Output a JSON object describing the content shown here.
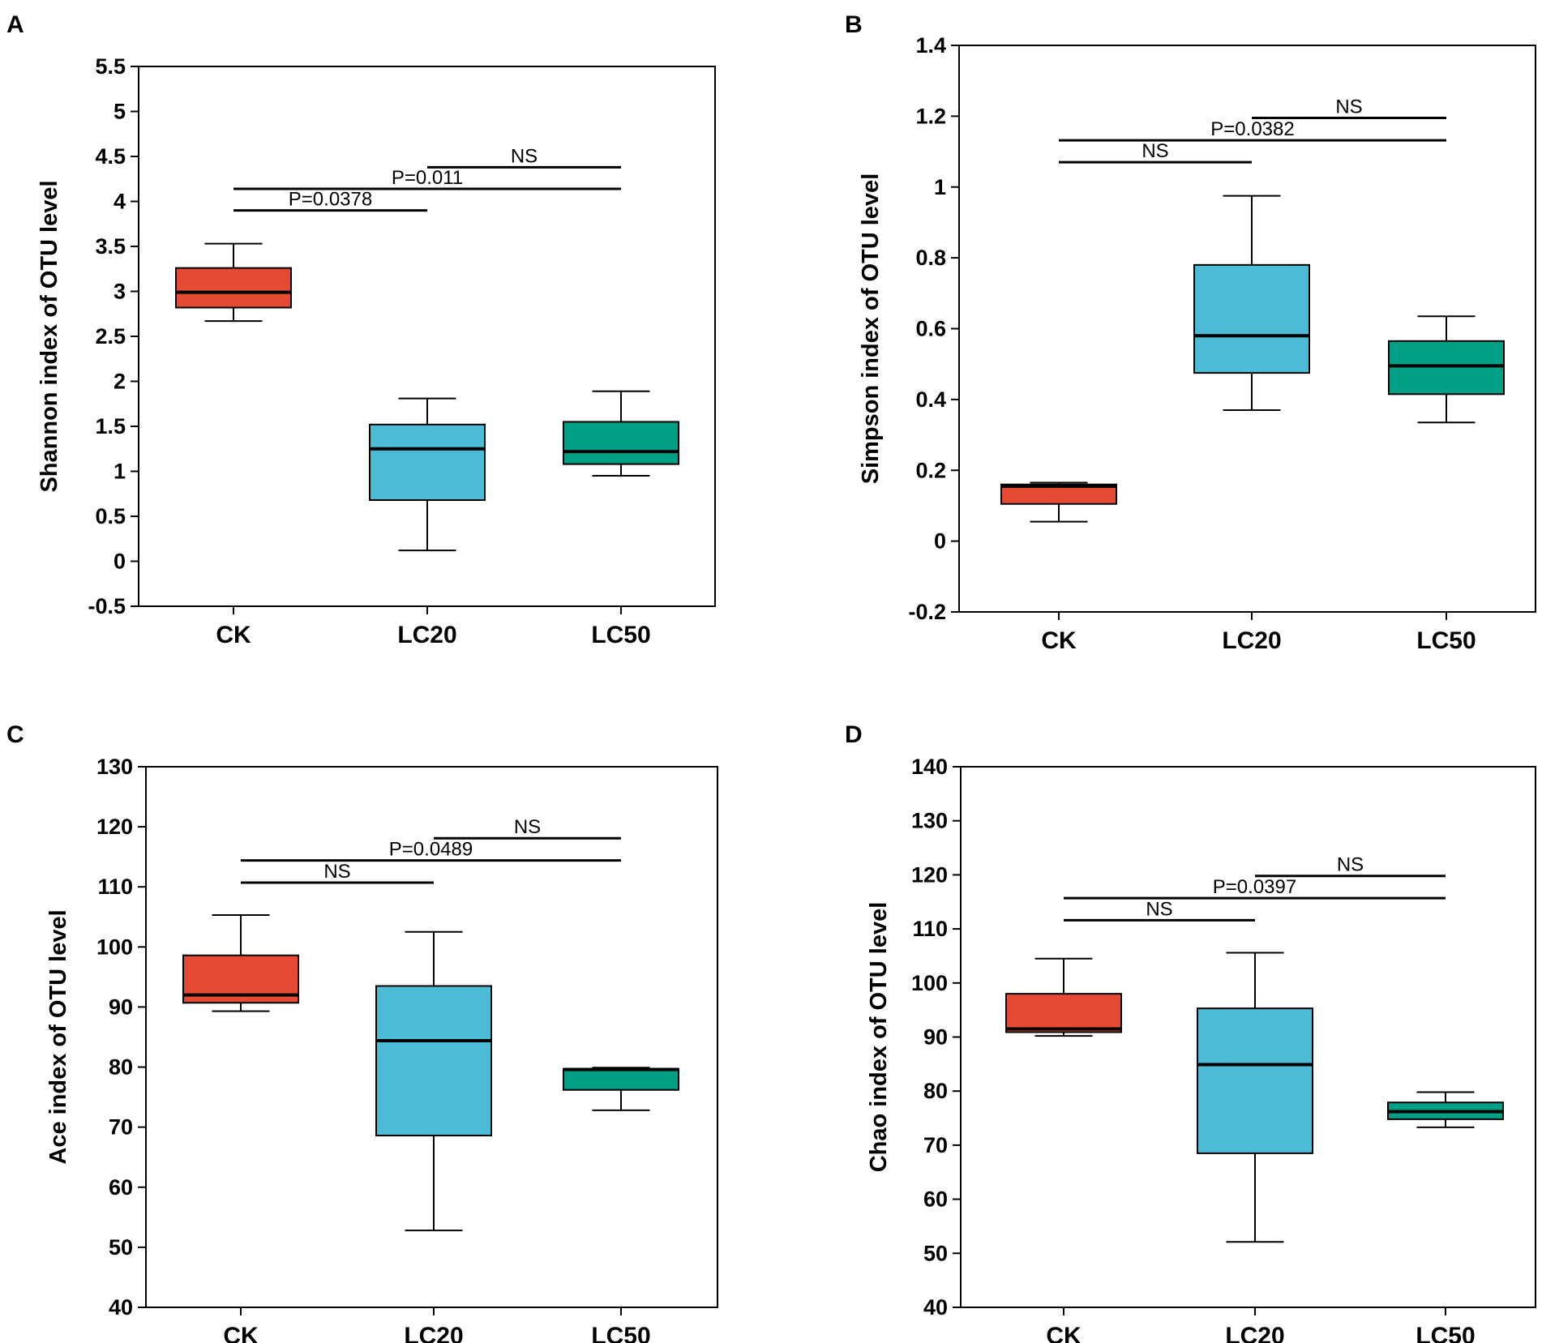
{
  "colors": {
    "CK": "#e54b33",
    "LC20": "#4bbbd6",
    "LC50": "#009f86"
  },
  "chart_data": [
    {
      "type": "box",
      "panel": "A",
      "ylabel": "Shannon index of OTU level",
      "categories": [
        "CK",
        "LC20",
        "LC50"
      ],
      "ylim": [
        -0.5,
        5.5
      ],
      "yticks": [
        -0.5,
        0,
        0.5,
        1,
        1.5,
        2,
        2.5,
        3,
        3.5,
        4,
        4.5,
        5,
        5.5
      ],
      "ytick_labels": [
        "-0.5",
        "0",
        "0.5",
        "1",
        "1.5",
        "2",
        "2.5",
        "3",
        "3.5",
        "4",
        "4.5",
        "5",
        "5.5"
      ],
      "boxes": [
        {
          "category": "CK",
          "min": 2.67,
          "q1": 2.82,
          "median": 2.99,
          "q3": 3.26,
          "max": 3.53
        },
        {
          "category": "LC20",
          "min": 0.12,
          "q1": 0.68,
          "median": 1.25,
          "q3": 1.52,
          "max": 1.81
        },
        {
          "category": "LC50",
          "min": 0.95,
          "q1": 1.08,
          "median": 1.22,
          "q3": 1.55,
          "max": 1.89
        }
      ],
      "comparisons": [
        {
          "from": 0,
          "to": 1,
          "y": 3.9,
          "label": "P=0.0378"
        },
        {
          "from": 0,
          "to": 2,
          "y": 4.14,
          "label": "P=0.011"
        },
        {
          "from": 1,
          "to": 2,
          "y": 4.38,
          "label": "NS"
        }
      ]
    },
    {
      "type": "box",
      "panel": "B",
      "ylabel": "Simpson index of OTU level",
      "categories": [
        "CK",
        "LC20",
        "LC50"
      ],
      "ylim": [
        -0.2,
        1.4
      ],
      "yticks": [
        -0.2,
        0,
        0.2,
        0.4,
        0.6,
        0.8,
        1.0,
        1.2,
        1.4
      ],
      "ytick_labels": [
        "-0.2",
        "0",
        "0.2",
        "0.4",
        "0.6",
        "0.8",
        "1",
        "1.2",
        "1.4"
      ],
      "boxes": [
        {
          "category": "CK",
          "min": 0.055,
          "q1": 0.105,
          "median": 0.155,
          "q3": 0.16,
          "max": 0.165
        },
        {
          "category": "LC20",
          "min": 0.37,
          "q1": 0.475,
          "median": 0.58,
          "q3": 0.78,
          "max": 0.975
        },
        {
          "category": "LC50",
          "min": 0.335,
          "q1": 0.415,
          "median": 0.495,
          "q3": 0.565,
          "max": 0.635
        }
      ],
      "comparisons": [
        {
          "from": 0,
          "to": 1,
          "y": 1.07,
          "label": "NS"
        },
        {
          "from": 0,
          "to": 2,
          "y": 1.132,
          "label": "P=0.0382"
        },
        {
          "from": 1,
          "to": 2,
          "y": 1.195,
          "label": "NS"
        }
      ]
    },
    {
      "type": "box",
      "panel": "C",
      "ylabel": "Ace index of OTU level",
      "categories": [
        "CK",
        "LC20",
        "LC50"
      ],
      "ylim": [
        40,
        130
      ],
      "yticks": [
        40,
        50,
        60,
        70,
        80,
        90,
        100,
        110,
        120,
        130
      ],
      "ytick_labels": [
        "40",
        "50",
        "60",
        "70",
        "80",
        "90",
        "100",
        "110",
        "120",
        "130"
      ],
      "boxes": [
        {
          "category": "CK",
          "min": 89.3,
          "q1": 90.7,
          "median": 92.0,
          "q3": 98.6,
          "max": 105.3
        },
        {
          "category": "LC20",
          "min": 52.8,
          "q1": 68.6,
          "median": 84.4,
          "q3": 93.5,
          "max": 102.5
        },
        {
          "category": "LC50",
          "min": 72.8,
          "q1": 76.2,
          "median": 79.6,
          "q3": 79.7,
          "max": 79.9
        }
      ],
      "comparisons": [
        {
          "from": 0,
          "to": 1,
          "y": 110.7,
          "label": "NS"
        },
        {
          "from": 0,
          "to": 2,
          "y": 114.4,
          "label": "P=0.0489"
        },
        {
          "from": 1,
          "to": 2,
          "y": 118.1,
          "label": "NS"
        }
      ]
    },
    {
      "type": "box",
      "panel": "D",
      "ylabel": "Chao index of OTU level",
      "categories": [
        "CK",
        "LC20",
        "LC50"
      ],
      "ylim": [
        40,
        140
      ],
      "yticks": [
        40,
        50,
        60,
        70,
        80,
        90,
        100,
        110,
        120,
        130,
        140
      ],
      "ytick_labels": [
        "40",
        "50",
        "60",
        "70",
        "80",
        "90",
        "100",
        "110",
        "120",
        "130",
        "140"
      ],
      "boxes": [
        {
          "category": "CK",
          "min": 90.2,
          "q1": 90.9,
          "median": 91.5,
          "q3": 98.0,
          "max": 104.5
        },
        {
          "category": "LC20",
          "min": 52.1,
          "q1": 68.5,
          "median": 84.9,
          "q3": 95.3,
          "max": 105.6
        },
        {
          "category": "LC50",
          "min": 73.3,
          "q1": 74.8,
          "median": 76.2,
          "q3": 77.9,
          "max": 79.8
        }
      ],
      "comparisons": [
        {
          "from": 0,
          "to": 1,
          "y": 111.6,
          "label": "NS"
        },
        {
          "from": 0,
          "to": 2,
          "y": 115.7,
          "label": "P=0.0397"
        },
        {
          "from": 1,
          "to": 2,
          "y": 119.8,
          "label": "NS"
        }
      ]
    }
  ]
}
